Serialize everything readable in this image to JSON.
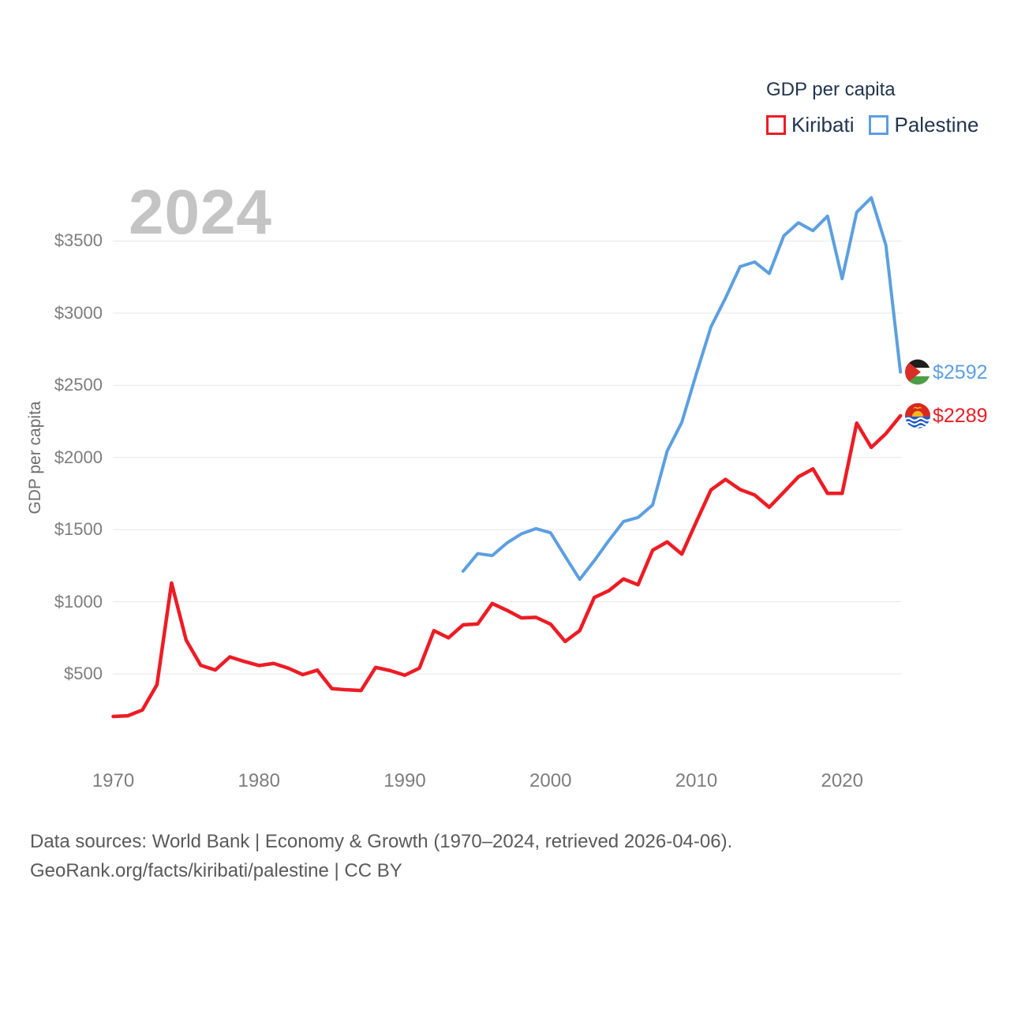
{
  "watermark": "2024",
  "legend": {
    "title": "GDP per capita",
    "series": [
      {
        "label": "Kiribati",
        "color": "#ed1c24"
      },
      {
        "label": "Palestine",
        "color": "#5c9fe0"
      }
    ]
  },
  "colors": {
    "kiribati_line": "#ed1c24",
    "palestine_line": "#5c9fe0",
    "legend_text": "#22354e",
    "tick_text": "#7d7d7d",
    "watermark_text": "#c4c4c4",
    "footer_text": "#5a5a5a",
    "gridline": "#e7e7e7"
  },
  "chart_data": {
    "type": "line",
    "title": "GDP per capita",
    "xlabel": "",
    "ylabel": "GDP per capita",
    "grid": "horizontal",
    "legend_position": "top-right",
    "xlim": [
      1970,
      2024
    ],
    "ylim": [
      0,
      3900
    ],
    "yticks": [
      {
        "value": 500,
        "label": "$500"
      },
      {
        "value": 1000,
        "label": "$1000"
      },
      {
        "value": 1500,
        "label": "$1500"
      },
      {
        "value": 2000,
        "label": "$2000"
      },
      {
        "value": 2500,
        "label": "$2500"
      },
      {
        "value": 3000,
        "label": "$3000"
      },
      {
        "value": 3500,
        "label": "$3500"
      }
    ],
    "xticks": [
      {
        "value": 1970,
        "label": "1970"
      },
      {
        "value": 1980,
        "label": "1980"
      },
      {
        "value": 1990,
        "label": "1990"
      },
      {
        "value": 2000,
        "label": "2000"
      },
      {
        "value": 2010,
        "label": "2010"
      },
      {
        "value": 2020,
        "label": "2020"
      }
    ],
    "series": [
      {
        "name": "Kiribati",
        "color": "#ed1c24",
        "start_year": 1970,
        "values": [
          205,
          210,
          250,
          425,
          1130,
          735,
          560,
          527,
          618,
          586,
          558,
          573,
          540,
          495,
          526,
          398,
          390,
          385,
          545,
          523,
          491,
          540,
          800,
          750,
          840,
          846,
          988,
          941,
          888,
          892,
          845,
          725,
          800,
          1030,
          1077,
          1158,
          1118,
          1357,
          1415,
          1330,
          1555,
          1775,
          1848,
          1778,
          1740,
          1655,
          1760,
          1866,
          1921,
          1751,
          1751,
          2238,
          2070,
          2165,
          2289
        ],
        "end_label": "$2289",
        "end_flag": "kiribati"
      },
      {
        "name": "Palestine",
        "color": "#5c9fe0",
        "start_year": 1994,
        "values": [
          1212,
          1334,
          1320,
          1407,
          1471,
          1507,
          1478,
          1315,
          1155,
          1285,
          1425,
          1556,
          1584,
          1671,
          2045,
          2243,
          2580,
          2905,
          3105,
          3323,
          3355,
          3275,
          3536,
          3627,
          3572,
          3673,
          3239,
          3700,
          3800,
          3473,
          2592
        ],
        "end_label": "$2592",
        "end_flag": "palestine"
      }
    ]
  },
  "footer": {
    "line1": "Data sources: World Bank | Economy & Growth (1970–2024, retrieved 2026-04-06).",
    "line2": "GeoRank.org/facts/kiribati/palestine | CC BY"
  }
}
